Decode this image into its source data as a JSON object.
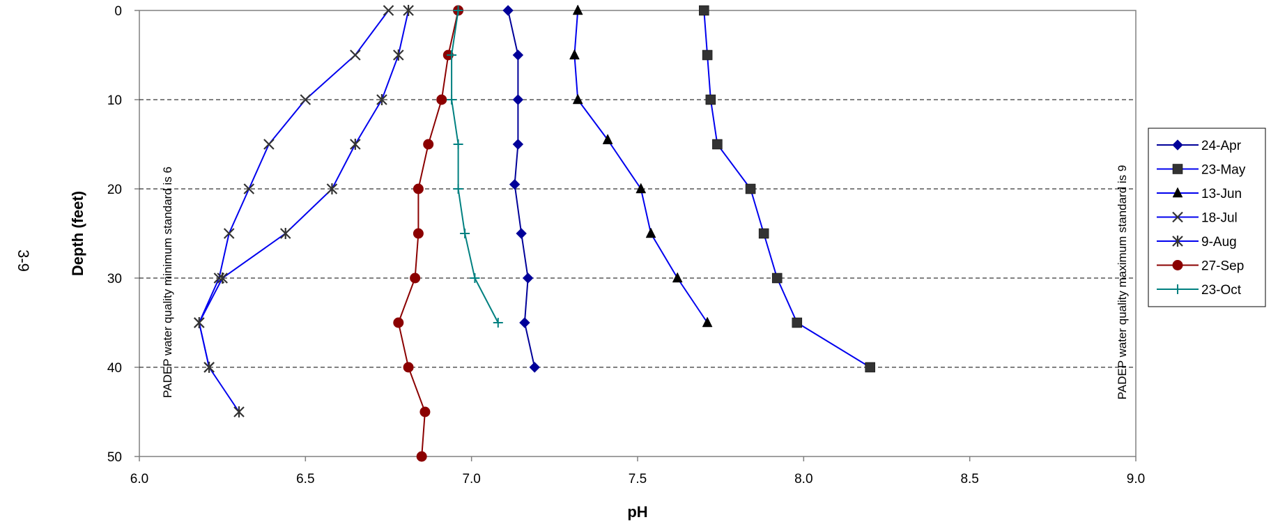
{
  "page_number": "3-9",
  "chart_data": {
    "type": "line",
    "title": "",
    "xlabel": "pH",
    "ylabel": "Depth (feet)",
    "xlim": [
      6.0,
      9.0
    ],
    "ylim": [
      50,
      0
    ],
    "x_ticks": [
      "6.0",
      "6.5",
      "7.0",
      "7.5",
      "8.0",
      "8.5",
      "9.0"
    ],
    "y_ticks": [
      "0",
      "10",
      "20",
      "30",
      "40",
      "50"
    ],
    "y_reversed": true,
    "grid": "horizontal dashed at 10 ft intervals",
    "legend_position": "right",
    "annotations": [
      {
        "text": "PADEP water quality minimum standard is 6",
        "at_x": 6.0
      },
      {
        "text": "PADEP water quality maximum standard is 9",
        "at_x": 9.0
      }
    ],
    "series": [
      {
        "name": "24-Apr",
        "color": "#000099",
        "marker": "diamond",
        "points": [
          [
            7.11,
            0
          ],
          [
            7.14,
            5
          ],
          [
            7.14,
            10
          ],
          [
            7.14,
            15
          ],
          [
            7.13,
            19.5
          ],
          [
            7.15,
            25
          ],
          [
            7.17,
            30
          ],
          [
            7.16,
            35
          ],
          [
            7.19,
            40
          ]
        ]
      },
      {
        "name": "23-May",
        "color": "#333333",
        "line_color": "#0000ee",
        "marker": "square",
        "points": [
          [
            7.7,
            0
          ],
          [
            7.71,
            5
          ],
          [
            7.72,
            10
          ],
          [
            7.74,
            15
          ],
          [
            7.84,
            20
          ],
          [
            7.88,
            25
          ],
          [
            7.92,
            30
          ],
          [
            7.98,
            35
          ],
          [
            8.2,
            40
          ]
        ]
      },
      {
        "name": "13-Jun",
        "color": "#000000",
        "line_color": "#0000ee",
        "marker": "triangle",
        "points": [
          [
            7.32,
            0
          ],
          [
            7.31,
            5
          ],
          [
            7.32,
            10
          ],
          [
            7.41,
            14.5
          ],
          [
            7.51,
            20
          ],
          [
            7.54,
            25
          ],
          [
            7.62,
            30
          ],
          [
            7.71,
            35
          ]
        ]
      },
      {
        "name": "18-Jul",
        "color": "#333333",
        "line_color": "#0000ee",
        "marker": "x",
        "points": [
          [
            6.75,
            0
          ],
          [
            6.65,
            5
          ],
          [
            6.5,
            10
          ],
          [
            6.39,
            15
          ],
          [
            6.33,
            20
          ],
          [
            6.27,
            25
          ],
          [
            6.24,
            30
          ],
          [
            6.18,
            35
          ],
          [
            6.21,
            40
          ]
        ]
      },
      {
        "name": "9-Aug",
        "color": "#333333",
        "line_color": "#0000ee",
        "marker": "star",
        "points": [
          [
            6.81,
            0
          ],
          [
            6.78,
            5
          ],
          [
            6.73,
            10
          ],
          [
            6.65,
            15
          ],
          [
            6.58,
            20
          ],
          [
            6.44,
            25
          ],
          [
            6.25,
            30
          ],
          [
            6.18,
            35
          ],
          [
            6.21,
            40
          ],
          [
            6.3,
            45
          ]
        ]
      },
      {
        "name": "27-Sep",
        "color": "#8b0000",
        "line_color": "#8b0000",
        "marker": "circle",
        "points": [
          [
            6.96,
            0
          ],
          [
            6.93,
            5
          ],
          [
            6.91,
            10
          ],
          [
            6.87,
            15
          ],
          [
            6.84,
            20
          ],
          [
            6.84,
            25
          ],
          [
            6.83,
            30
          ],
          [
            6.78,
            35
          ],
          [
            6.81,
            40
          ],
          [
            6.86,
            45
          ],
          [
            6.85,
            50
          ]
        ]
      },
      {
        "name": "23-Oct",
        "color": "#008080",
        "line_color": "#008080",
        "marker": "plus",
        "points": [
          [
            6.96,
            0
          ],
          [
            6.94,
            5
          ],
          [
            6.94,
            10
          ],
          [
            6.96,
            15
          ],
          [
            6.96,
            20
          ],
          [
            6.98,
            25
          ],
          [
            7.01,
            30
          ],
          [
            7.08,
            35
          ]
        ]
      }
    ]
  }
}
